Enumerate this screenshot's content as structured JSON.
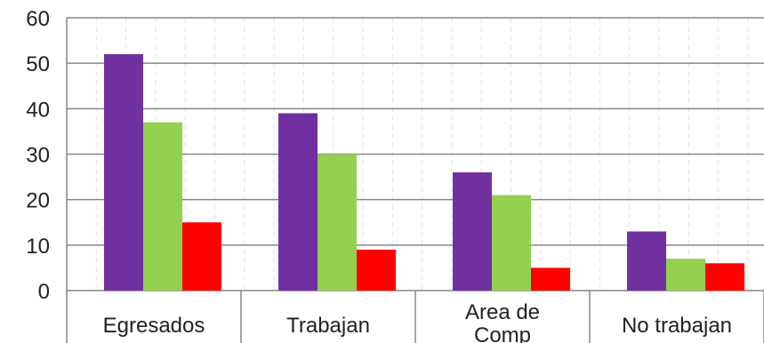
{
  "chart_data": {
    "type": "bar",
    "title": "",
    "xlabel": "",
    "ylabel": "",
    "ylim": [
      0,
      60
    ],
    "yticks": [
      0,
      10,
      20,
      30,
      40,
      50,
      60
    ],
    "yticks_text": [
      "0",
      "10",
      "20",
      "30",
      "40",
      "50",
      "60"
    ],
    "grid": true,
    "legend": "none",
    "categories": [
      [
        "Egresados"
      ],
      [
        "Trabajan"
      ],
      [
        "Area de",
        "Comp"
      ],
      [
        "No trabajan"
      ]
    ],
    "category_labels": [
      "Egresados",
      "Trabajan",
      "Area de Comp",
      "No trabajan"
    ],
    "series": [
      {
        "color": "#7030a0",
        "values": [
          52,
          39,
          26,
          13
        ]
      },
      {
        "color": "#92d050",
        "values": [
          37,
          30,
          21,
          7
        ]
      },
      {
        "color": "#ff0000",
        "values": [
          15,
          9,
          5,
          6
        ]
      }
    ]
  }
}
